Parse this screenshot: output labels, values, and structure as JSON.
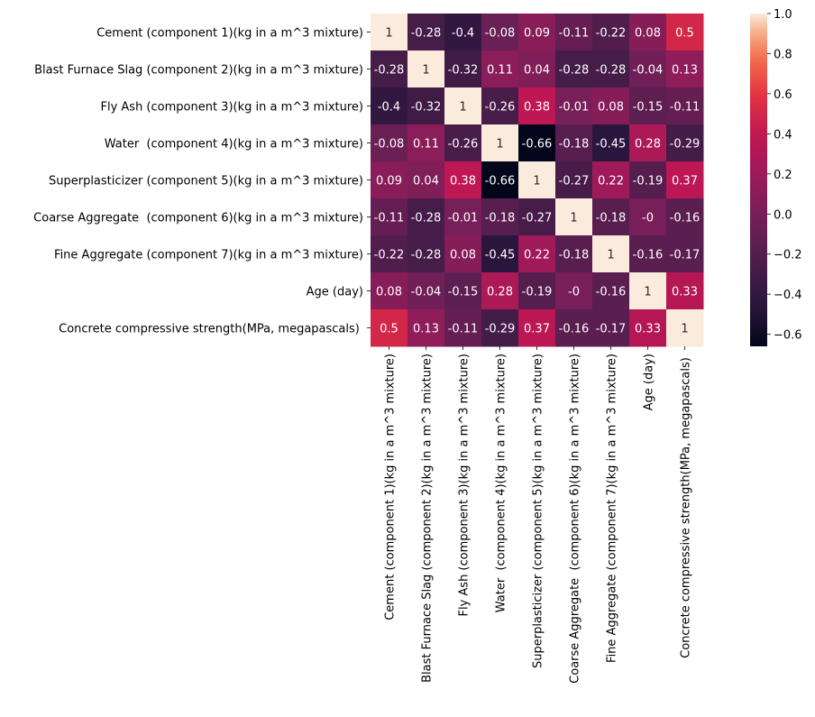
{
  "chart_data": {
    "type": "heatmap",
    "labels": [
      "Cement (component 1)(kg in a m^3 mixture)",
      "Blast Furnace Slag (component 2)(kg in a m^3 mixture)",
      "Fly Ash (component 3)(kg in a m^3 mixture)",
      "Water  (component 4)(kg in a m^3 mixture)",
      "Superplasticizer (component 5)(kg in a m^3 mixture)",
      "Coarse Aggregate  (component 6)(kg in a m^3 mixture)",
      "Fine Aggregate (component 7)(kg in a m^3 mixture)",
      "Age (day)",
      "Concrete compressive strength(MPa, megapascals) "
    ],
    "values": [
      [
        1,
        -0.28,
        -0.4,
        -0.08,
        0.09,
        -0.11,
        -0.22,
        0.08,
        0.5
      ],
      [
        -0.28,
        1,
        -0.32,
        0.11,
        0.04,
        -0.28,
        -0.28,
        -0.04,
        0.13
      ],
      [
        -0.4,
        -0.32,
        1,
        -0.26,
        0.38,
        -0.01,
        0.08,
        -0.15,
        -0.11
      ],
      [
        -0.08,
        0.11,
        -0.26,
        1,
        -0.66,
        -0.18,
        -0.45,
        0.28,
        -0.29
      ],
      [
        0.09,
        0.04,
        0.38,
        -0.66,
        1,
        -0.27,
        0.22,
        -0.19,
        0.37
      ],
      [
        -0.11,
        -0.28,
        -0.01,
        -0.18,
        -0.27,
        1,
        -0.18,
        -0.0,
        -0.16
      ],
      [
        -0.22,
        -0.28,
        0.08,
        -0.45,
        0.22,
        -0.18,
        1,
        -0.16,
        -0.17
      ],
      [
        0.08,
        -0.04,
        -0.15,
        0.28,
        -0.19,
        -0.0,
        -0.16,
        1,
        0.33
      ],
      [
        0.5,
        0.13,
        -0.11,
        -0.29,
        0.37,
        -0.16,
        -0.17,
        0.33,
        1
      ]
    ],
    "display_values": [
      [
        "1",
        "-0.28",
        "-0.4",
        "-0.08",
        "0.09",
        "-0.11",
        "-0.22",
        "0.08",
        "0.5"
      ],
      [
        "-0.28",
        "1",
        "-0.32",
        "0.11",
        "0.04",
        "-0.28",
        "-0.28",
        "-0.04",
        "0.13"
      ],
      [
        "-0.4",
        "-0.32",
        "1",
        "-0.26",
        "0.38",
        "-0.01",
        "0.08",
        "-0.15",
        "-0.11"
      ],
      [
        "-0.08",
        "0.11",
        "-0.26",
        "1",
        "-0.66",
        "-0.18",
        "-0.45",
        "0.28",
        "-0.29"
      ],
      [
        "0.09",
        "0.04",
        "0.38",
        "-0.66",
        "1",
        "-0.27",
        "0.22",
        "-0.19",
        "0.37"
      ],
      [
        "-0.11",
        "-0.28",
        "-0.01",
        "-0.18",
        "-0.27",
        "1",
        "-0.18",
        "-0",
        "-0.16"
      ],
      [
        "-0.22",
        "-0.28",
        "0.08",
        "-0.45",
        "0.22",
        "-0.18",
        "1",
        "-0.16",
        "-0.17"
      ],
      [
        "0.08",
        "-0.04",
        "-0.15",
        "0.28",
        "-0.19",
        "-0",
        "-0.16",
        "1",
        "0.33"
      ],
      [
        "0.5",
        "0.13",
        "-0.11",
        "-0.29",
        "0.37",
        "-0.16",
        "-0.17",
        "0.33",
        "1"
      ]
    ],
    "colorbar": {
      "range": [
        -0.66,
        1.0
      ],
      "ticks": [
        1.0,
        0.8,
        0.6,
        0.4,
        0.2,
        0.0,
        -0.2,
        -0.4,
        -0.6
      ],
      "tick_labels": [
        "1.0",
        "0.8",
        "0.6",
        "0.4",
        "0.2",
        "0.0",
        "−0.2",
        "−0.4",
        "−0.6"
      ],
      "colormap": "rocket"
    },
    "grid": false
  }
}
